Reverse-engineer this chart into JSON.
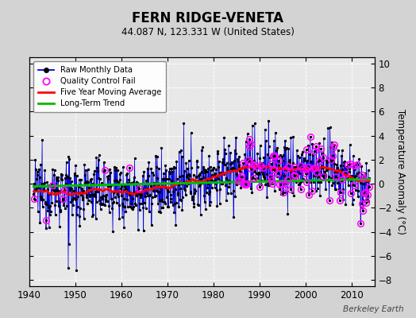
{
  "title": "FERN RIDGE-VENETA",
  "subtitle": "44.087 N, 123.331 W (United States)",
  "ylabel": "Temperature Anomaly (°C)",
  "watermark": "Berkeley Earth",
  "xlim": [
    1940,
    2015
  ],
  "ylim": [
    -8.5,
    10.5
  ],
  "yticks": [
    -8,
    -6,
    -4,
    -2,
    0,
    2,
    4,
    6,
    8,
    10
  ],
  "xticks": [
    1940,
    1950,
    1960,
    1970,
    1980,
    1990,
    2000,
    2010
  ],
  "bg_color": "#d3d3d3",
  "plot_bg_color": "#e8e8e8",
  "raw_color": "#0000dd",
  "raw_dot_color": "#000000",
  "qc_color": "#ff00ff",
  "moving_avg_color": "#ff0000",
  "trend_color": "#00bb00",
  "seed": 12345,
  "years_start": 1941,
  "years_end": 2013
}
